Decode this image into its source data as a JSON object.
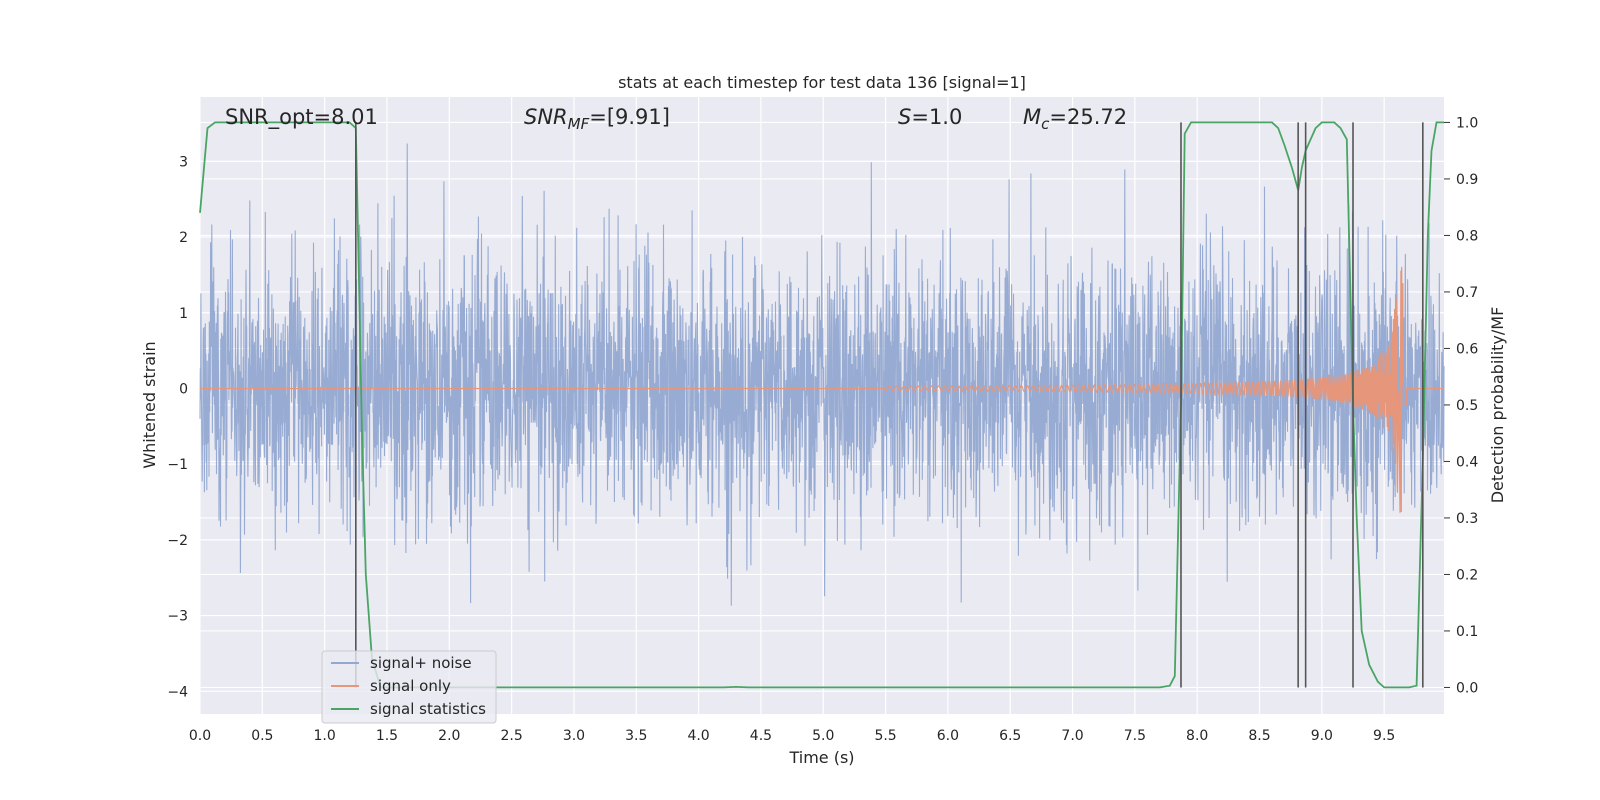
{
  "chart_data": {
    "type": "line",
    "title": "stats at each timestep for test data 136 [signal=1]",
    "xlabel": "Time (s)",
    "ylabel": "Whitened strain",
    "y2label": "Detection probability/MF",
    "xlim": [
      0,
      9.98
    ],
    "ylim": [
      -4.3,
      3.85
    ],
    "y2lim": [
      -0.047,
      1.045
    ],
    "xticks": [
      "0.0",
      "0.5",
      "1.0",
      "1.5",
      "2.0",
      "2.5",
      "3.0",
      "3.5",
      "4.0",
      "4.5",
      "5.0",
      "5.5",
      "6.0",
      "6.5",
      "7.0",
      "7.5",
      "8.0",
      "8.5",
      "9.0",
      "9.5"
    ],
    "yticks": [
      3,
      2,
      1,
      0,
      -1,
      -2,
      -3,
      -4
    ],
    "ytick_labels": [
      "3",
      "2",
      "1",
      "0",
      "−1",
      "−2",
      "−3",
      "−4"
    ],
    "y2ticks": [
      "1.0",
      "0.9",
      "0.8",
      "0.7",
      "0.6",
      "0.5",
      "0.4",
      "0.3",
      "0.2",
      "0.1",
      "0.0"
    ],
    "grid": true,
    "legend_position": "lower-left",
    "annotations": [
      {
        "id": "snr-opt",
        "text": "SNR_opt=8.01",
        "x": 0.2
      },
      {
        "id": "snr-mf",
        "label": "SNR",
        "sub": "MF",
        "text": "=[9.91]",
        "x": 2.6
      },
      {
        "id": "s-stat",
        "label": "S",
        "text": "=1.0",
        "x": 5.6
      },
      {
        "id": "mc",
        "label": "M",
        "sub": "c",
        "text": "=25.72",
        "x": 6.6
      }
    ],
    "vlines": [
      1.25,
      7.87,
      8.81,
      8.87,
      9.25,
      9.81
    ],
    "series": [
      {
        "name": "signal+ noise",
        "color": "#92a8d1",
        "amplitude_envelope": [
          -3.6,
          3.4
        ],
        "description": "whitened noisy strain"
      },
      {
        "name": "signal only",
        "color": "#e5967b",
        "chirp_start": 5.5,
        "chirp_peak_time": 9.65,
        "chirp_peak_amplitude": 1.65
      },
      {
        "name": "signal statistics",
        "color": "#4aa564",
        "axis": "right",
        "x": [
          0.0,
          0.06,
          0.12,
          0.5,
          1.0,
          1.2,
          1.25,
          1.27,
          1.3,
          1.33,
          1.38,
          1.45,
          2.0,
          3.0,
          4.0,
          4.2,
          4.3,
          4.4,
          5.0,
          6.0,
          7.0,
          7.5,
          7.7,
          7.78,
          7.82,
          7.87,
          7.9,
          7.95,
          8.0,
          8.5,
          8.6,
          8.65,
          8.7,
          8.76,
          8.81,
          8.84,
          8.87,
          8.91,
          8.95,
          9.0,
          9.05,
          9.1,
          9.15,
          9.2,
          9.25,
          9.28,
          9.32,
          9.38,
          9.45,
          9.5,
          9.6,
          9.7,
          9.76,
          9.81,
          9.85,
          9.88,
          9.92,
          9.96,
          9.98
        ],
        "y": [
          0.84,
          0.99,
          1.0,
          1.0,
          1.0,
          1.0,
          0.99,
          0.78,
          0.45,
          0.2,
          0.05,
          0.0,
          0.0,
          0.0,
          0.0,
          0.0,
          0.001,
          0.0,
          0.0,
          0.0,
          0.0,
          0.0,
          0.0,
          0.003,
          0.02,
          0.5,
          0.98,
          1.0,
          1.0,
          1.0,
          1.0,
          0.99,
          0.96,
          0.92,
          0.88,
          0.92,
          0.95,
          0.97,
          0.99,
          1.0,
          1.0,
          1.0,
          0.99,
          0.97,
          0.5,
          0.3,
          0.1,
          0.04,
          0.01,
          0.0,
          0.0,
          0.0,
          0.003,
          0.4,
          0.8,
          0.95,
          1.0,
          1.0,
          1.0
        ]
      }
    ]
  }
}
